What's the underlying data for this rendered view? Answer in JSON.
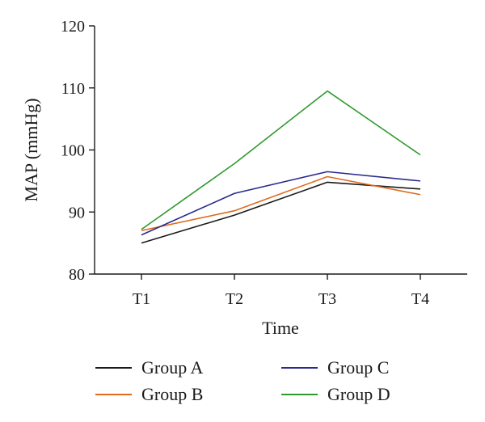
{
  "chart_data": {
    "type": "line",
    "title": "",
    "xlabel": "Time",
    "ylabel": "MAP (mmHg)",
    "categories": [
      "T1",
      "T2",
      "T3",
      "T4"
    ],
    "ylim": [
      80,
      120
    ],
    "yticks": [
      "80",
      "90",
      "100",
      "110",
      "120"
    ],
    "grid": false,
    "legend_position": "bottom",
    "series": [
      {
        "name": "Group A",
        "color": "#1a1a1a",
        "values": [
          85.0,
          89.5,
          94.8,
          93.7
        ]
      },
      {
        "name": "Group B",
        "color": "#e06a1b",
        "values": [
          87.0,
          90.2,
          95.7,
          92.8
        ]
      },
      {
        "name": "Group C",
        "color": "#2b2a8c",
        "values": [
          86.3,
          93.0,
          96.5,
          95.0
        ]
      },
      {
        "name": "Group D",
        "color": "#2e9a2e",
        "values": [
          87.2,
          97.8,
          109.5,
          99.2
        ]
      }
    ]
  }
}
